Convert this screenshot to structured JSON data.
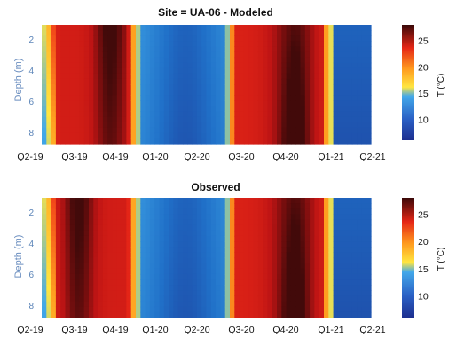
{
  "chart_data": {
    "type": "heatmap",
    "colorscale": [
      "#1d2f8f",
      "#2070c8",
      "#41a8e8",
      "#ffe640",
      "#ffa020",
      "#ee2a18",
      "#bd1414",
      "#420a0a"
    ],
    "value_range": [
      6,
      28
    ],
    "panels": [
      {
        "title": "Site = UA-06 - Modeled",
        "ylabel": "Depth (m)",
        "y_ticks": [
          "2",
          "4",
          "6",
          "8"
        ],
        "x_ticks": [
          "Q2-19",
          "Q3-19",
          "Q4-19",
          "Q1-20",
          "Q2-20",
          "Q3-20",
          "Q4-20",
          "Q1-21",
          "Q2-21"
        ],
        "colorbar_ticks": [
          "25",
          "20",
          "15",
          "10"
        ],
        "colorbar_label": "T (°C)",
        "time_range": [
          "Q2-19",
          "Q2-21"
        ],
        "depth_range_m": [
          0,
          9
        ],
        "anomaly_center": "Q4-19"
      },
      {
        "title": "Observed",
        "ylabel": "Depth (m)",
        "y_ticks": [
          "2",
          "4",
          "6",
          "8"
        ],
        "x_ticks": [
          "Q2-19",
          "Q3-19",
          "Q4-19",
          "Q1-20",
          "Q2-20",
          "Q3-20",
          "Q4-20",
          "Q1-21",
          "Q2-21"
        ],
        "colorbar_ticks": [
          "25",
          "20",
          "15",
          "10"
        ],
        "colorbar_label": "T (°C)",
        "time_range": [
          "Q2-19",
          "Q2-21"
        ],
        "depth_range_m": [
          0,
          9
        ],
        "anomaly_center": "Q3-19"
      }
    ]
  }
}
